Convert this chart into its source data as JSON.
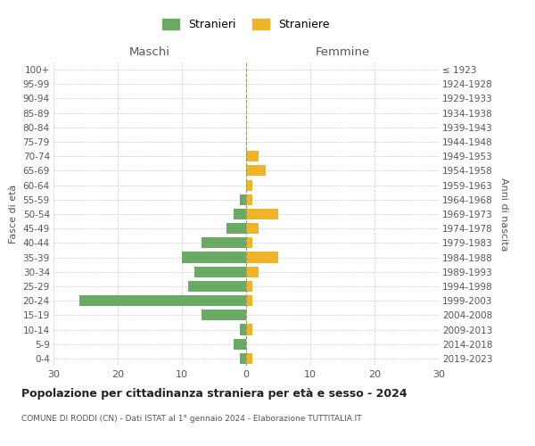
{
  "age_groups": [
    "0-4",
    "5-9",
    "10-14",
    "15-19",
    "20-24",
    "25-29",
    "30-34",
    "35-39",
    "40-44",
    "45-49",
    "50-54",
    "55-59",
    "60-64",
    "65-69",
    "70-74",
    "75-79",
    "80-84",
    "85-89",
    "90-94",
    "95-99",
    "100+"
  ],
  "birth_years": [
    "2019-2023",
    "2014-2018",
    "2009-2013",
    "2004-2008",
    "1999-2003",
    "1994-1998",
    "1989-1993",
    "1984-1988",
    "1979-1983",
    "1974-1978",
    "1969-1973",
    "1964-1968",
    "1959-1963",
    "1954-1958",
    "1949-1953",
    "1944-1948",
    "1939-1943",
    "1934-1938",
    "1929-1933",
    "1924-1928",
    "≤ 1923"
  ],
  "maschi": [
    1,
    2,
    1,
    7,
    26,
    9,
    8,
    10,
    7,
    3,
    2,
    1,
    0,
    0,
    0,
    0,
    0,
    0,
    0,
    0,
    0
  ],
  "femmine": [
    1,
    0,
    1,
    0,
    1,
    1,
    2,
    5,
    1,
    2,
    5,
    1,
    1,
    3,
    2,
    0,
    0,
    0,
    0,
    0,
    0
  ],
  "male_color": "#6aaa64",
  "female_color": "#f0b429",
  "grid_color": "#cccccc",
  "title": "Popolazione per cittadinanza straniera per età e sesso - 2024",
  "subtitle": "COMUNE DI RODDI (CN) - Dati ISTAT al 1° gennaio 2024 - Elaborazione TUTTITALIA.IT",
  "xlabel_left": "Maschi",
  "xlabel_right": "Femmine",
  "ylabel_left": "Fasce di età",
  "ylabel_right": "Anni di nascita",
  "legend_stranieri": "Stranieri",
  "legend_straniere": "Straniere",
  "xlim": 30,
  "background_color": "#ffffff"
}
